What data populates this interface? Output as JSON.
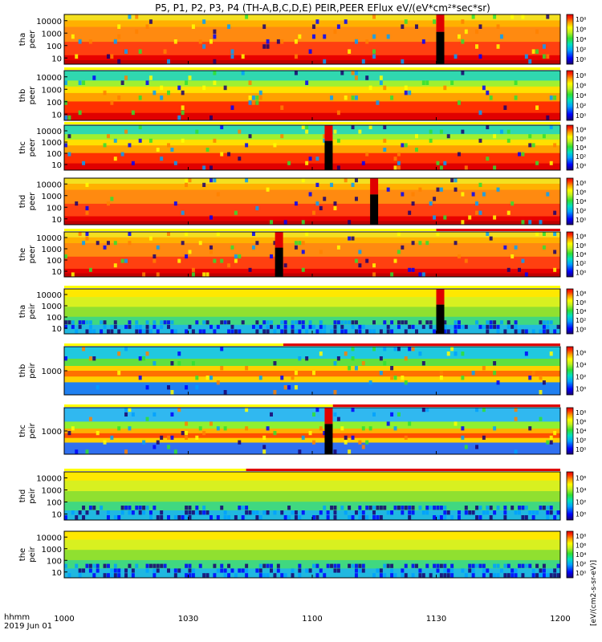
{
  "title": "P5, P1, P2, P3, P4 (TH-A,B,C,D,E) PEIR,PEER EFlux eV/(eV*cm²*sec*sr)",
  "colorbar_label": "[eV/(cm2-s-sr-eV)]",
  "x_axis": {
    "label_line1": "hhmm",
    "label_line2": "2019 Jun 01",
    "ticks": [
      "1000",
      "1030",
      "1100",
      "1130",
      "1200"
    ]
  },
  "chart_data": {
    "type": "heatmap",
    "x_range_minutes": [
      0,
      120
    ],
    "y_scale": "log",
    "colormap": [
      "#1a0070",
      "#0000ff",
      "#00a0ff",
      "#00e0c0",
      "#30e030",
      "#c0f020",
      "#ffff00",
      "#ffa000",
      "#ff3000",
      "#e00000"
    ],
    "panels": [
      {
        "id": "tha-peer",
        "label1": "tha",
        "label2": "peer",
        "yticks": [
          "10",
          "100",
          "1000",
          "10000"
        ],
        "cticks": [
          "10⁸",
          "10⁶",
          "10⁴",
          "10²",
          "10⁰"
        ],
        "base": "orange",
        "gap_minute": 90,
        "flag": null
      },
      {
        "id": "thb-peer",
        "label1": "thb",
        "label2": "peer",
        "yticks": [
          "10",
          "100",
          "1000",
          "10000"
        ],
        "cticks": [
          "10⁸",
          "10⁶",
          "10⁴",
          "10²",
          "10⁰"
        ],
        "base": "band",
        "gap_minute": null,
        "flag": {
          "from": 0,
          "to": 120,
          "color": "yellow"
        }
      },
      {
        "id": "thc-peer",
        "label1": "thc",
        "label2": "peer",
        "yticks": [
          "10",
          "100",
          "1000",
          "10000"
        ],
        "cticks": [
          "10⁸",
          "10⁶",
          "10⁴",
          "10²",
          "10⁰"
        ],
        "base": "band",
        "gap_minute": 63,
        "flag": {
          "from": 0,
          "to": 120,
          "color": "yellow"
        }
      },
      {
        "id": "thd-peer",
        "label1": "thd",
        "label2": "peer",
        "yticks": [
          "10",
          "100",
          "1000",
          "10000"
        ],
        "cticks": [
          "10⁸",
          "10⁶",
          "10⁴",
          "10²",
          "10⁰"
        ],
        "base": "orange",
        "gap_minute": 74,
        "flag": null
      },
      {
        "id": "the-peer",
        "label1": "the",
        "label2": "peer",
        "yticks": [
          "10",
          "100",
          "1000",
          "10000"
        ],
        "cticks": [
          "10⁸",
          "10⁶",
          "10⁴",
          "10²",
          "10⁰"
        ],
        "base": "orange",
        "gap_minute": 51,
        "flag": {
          "from": 0,
          "to": 120,
          "color": "yellow",
          "red_from": 90
        }
      },
      {
        "id": "tha-peir",
        "label1": "tha",
        "label2": "peir",
        "yticks": [
          "10",
          "100",
          "1000",
          "10000"
        ],
        "cticks": [
          "10⁸",
          "10⁶",
          "10⁴",
          "10²",
          "10⁰"
        ],
        "base": "ion",
        "gap_minute": 90,
        "flag": {
          "from": 0,
          "to": 120,
          "color": "yellow"
        }
      },
      {
        "id": "thb-peir",
        "label1": "thb",
        "label2": "peir",
        "yticks": [
          "1000"
        ],
        "cticks": [
          "10⁶",
          "10⁴",
          "10²",
          "10⁰"
        ],
        "base": "ionband",
        "gap_minute": null,
        "flag": {
          "from": 0,
          "to": 120,
          "color": "yellow",
          "red_from": 53
        }
      },
      {
        "id": "thc-peir",
        "label1": "thc",
        "label2": "peir",
        "yticks": [
          "1000"
        ],
        "cticks": [
          "10⁸",
          "10⁶",
          "10⁴",
          "10²",
          "10⁰"
        ],
        "base": "ionband2",
        "gap_minute": 63,
        "flag": {
          "from": 0,
          "to": 120,
          "color": "yellow",
          "red_from": 65
        }
      },
      {
        "id": "thd-peir",
        "label1": "thd",
        "label2": "peir",
        "yticks": [
          "10",
          "100",
          "1000",
          "10000"
        ],
        "cticks": [
          "10⁶",
          "10⁴",
          "10²",
          "10⁰"
        ],
        "base": "ion",
        "gap_minute": null,
        "flag": {
          "from": 0,
          "to": 120,
          "color": "yellow",
          "red_from": 44
        }
      },
      {
        "id": "the-peir",
        "label1": "the",
        "label2": "peir",
        "yticks": [
          "10",
          "100",
          "1000",
          "10000"
        ],
        "cticks": [
          "10⁸",
          "10⁶",
          "10⁴",
          "10²",
          "10⁰"
        ],
        "base": "ion",
        "gap_minute": null,
        "flag": null
      }
    ]
  }
}
